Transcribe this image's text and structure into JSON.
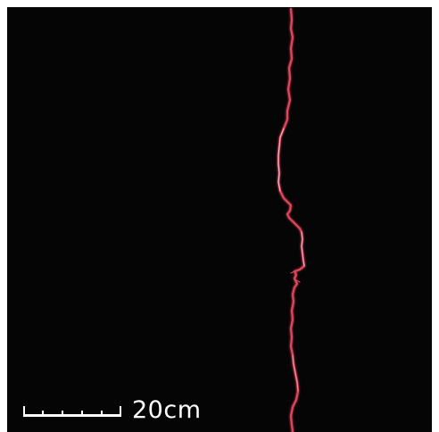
{
  "image": {
    "background_color": "#050505",
    "page_color": "#ffffff",
    "crack_color": "#e0455c",
    "crack_highlight_color": "#ffd6dc"
  },
  "scale_bar": {
    "label": "20cm",
    "color": "#ffffff",
    "tick_count": 6
  }
}
